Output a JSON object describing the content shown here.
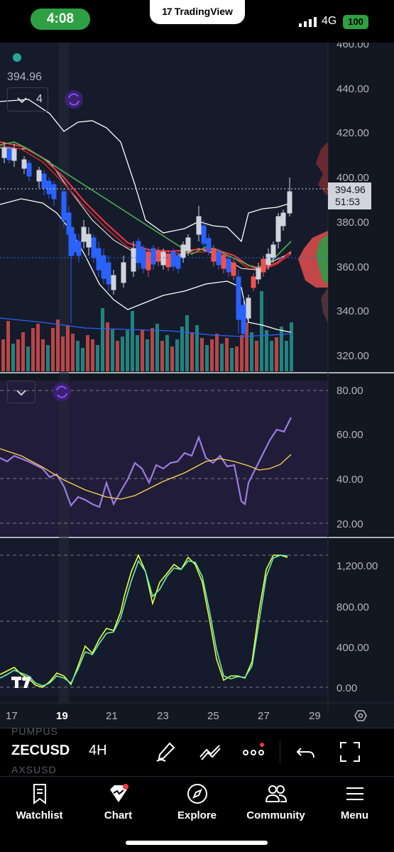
{
  "status_bar": {
    "time": "4:08",
    "network": "4G",
    "battery": "100"
  },
  "tradingview_tab": {
    "label": "TradingView"
  },
  "chart": {
    "symbol": "ZECUSD",
    "interval": "4H",
    "last_price_label": "394.96",
    "price_tag": {
      "price": "394.96",
      "countdown": "51:53"
    },
    "indicator_count": "4",
    "price_axis": [
      "460.00",
      "440.00",
      "420.00",
      "400.00",
      "380.00",
      "360.00",
      "340.00",
      "320.00"
    ],
    "rsi_axis": [
      "80.00",
      "60.00",
      "40.00",
      "20.00"
    ],
    "third_axis": [
      "1,200.00",
      "800.00",
      "400.00",
      "0.00"
    ],
    "time_axis": [
      "17",
      "19",
      "21",
      "23",
      "25",
      "27",
      "29"
    ]
  },
  "chart_data": {
    "type": "candlestick",
    "panes": [
      {
        "name": "price",
        "ylim": [
          320,
          460
        ],
        "x_labels": [
          "17",
          "19",
          "21",
          "23",
          "25",
          "27",
          "29"
        ],
        "close_approx": [
          420,
          418,
          416,
          412,
          408,
          400,
          392,
          382,
          372,
          365,
          375,
          382,
          372,
          365,
          358,
          355,
          360,
          372,
          378,
          370,
          365,
          364,
          362,
          365,
          368,
          366,
          372,
          382,
          378,
          372,
          368,
          365,
          362,
          360,
          345,
          338,
          355,
          365,
          375,
          384,
          394.96
        ],
        "current_price": 394.96,
        "bar_countdown": "51:53"
      },
      {
        "name": "oscillator-1",
        "ylim": [
          20,
          80
        ],
        "y_ticks": [
          80,
          60,
          40,
          20
        ],
        "series": [
          {
            "color": "#9b7bdf",
            "values": [
              48,
              46,
              44,
              43,
              40,
              36,
              30,
              32,
              29,
              34,
              29,
              33,
              45,
              50,
              44,
              48,
              51,
              53,
              59,
              53,
              50,
              44,
              45,
              43,
              30,
              40,
              52,
              58,
              62,
              68
            ]
          },
          {
            "color": "#ffd54f",
            "values": [
              49,
              47,
              45,
              42,
              39,
              36,
              34,
              32,
              32,
              32,
              34,
              37,
              40,
              42,
              44,
              46,
              48,
              50,
              50,
              49,
              48,
              47,
              46,
              45,
              43,
              42,
              44,
              47,
              49,
              52
            ]
          }
        ]
      },
      {
        "name": "oscillator-2",
        "ylim": [
          0,
          1300
        ],
        "y_ticks": [
          1200,
          800,
          400,
          0
        ],
        "series": [
          {
            "color": "#eeff41",
            "values": [
              60,
              120,
              40,
              80,
              20,
              160,
              70,
              320,
              470,
              590,
              500,
              1250,
              880,
              1150,
              1100,
              1230,
              1150,
              700,
              90,
              120,
              110,
              600,
              1200,
              1260
            ]
          },
          {
            "color": "#69f0ae",
            "values": [
              40,
              100,
              60,
              60,
              40,
              120,
              90,
              260,
              420,
              540,
              560,
              1180,
              920,
              1100,
              1130,
              1200,
              1180,
              760,
              140,
              100,
              130,
              520,
              1150,
              1240
            ]
          }
        ]
      }
    ]
  },
  "toolbar": {
    "ghost_top": "PUMPUS",
    "ghost_bottom": "AXSUSD",
    "icons": [
      "brush-icon",
      "trend-line-icon",
      "more-icon",
      "undo-icon",
      "fullscreen-icon"
    ]
  },
  "tab_bar": {
    "items": [
      {
        "label": "Watchlist",
        "icon": "bookmark-icon"
      },
      {
        "label": "Chart",
        "icon": "chart-icon"
      },
      {
        "label": "Explore",
        "icon": "compass-icon"
      },
      {
        "label": "Community",
        "icon": "people-icon"
      },
      {
        "label": "Menu",
        "icon": "hamburger-icon"
      }
    ]
  }
}
